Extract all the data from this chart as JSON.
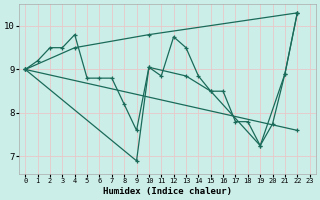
{
  "xlabel": "Humidex (Indice chaleur)",
  "bg_color": "#cceee8",
  "grid_color": "#e8c8c8",
  "line_color": "#1a6b5a",
  "xlim": [
    -0.5,
    23.5
  ],
  "ylim": [
    6.6,
    10.5
  ],
  "xticks": [
    0,
    1,
    2,
    3,
    4,
    5,
    6,
    7,
    8,
    9,
    10,
    11,
    12,
    13,
    14,
    15,
    16,
    17,
    18,
    19,
    20,
    21,
    22,
    23
  ],
  "yticks": [
    7,
    8,
    9,
    10
  ],
  "series": [
    {
      "x": [
        0,
        1,
        2,
        3,
        4,
        5,
        6,
        7,
        8,
        9,
        10,
        11,
        12,
        13,
        14,
        15,
        16,
        17,
        18,
        19,
        20,
        21,
        22
      ],
      "y": [
        9.0,
        9.2,
        9.5,
        9.5,
        9.8,
        8.8,
        8.8,
        8.8,
        8.2,
        7.6,
        9.05,
        8.85,
        9.75,
        9.5,
        8.85,
        8.5,
        8.5,
        7.8,
        7.8,
        7.25,
        7.75,
        8.9,
        10.3
      ]
    },
    {
      "x": [
        0,
        4,
        10,
        22
      ],
      "y": [
        9.0,
        9.5,
        9.8,
        10.3
      ]
    },
    {
      "x": [
        0,
        9,
        10,
        13,
        15,
        19,
        21,
        22
      ],
      "y": [
        9.0,
        6.9,
        9.05,
        8.85,
        8.5,
        7.25,
        8.9,
        10.3
      ]
    },
    {
      "x": [
        0,
        22
      ],
      "y": [
        9.0,
        7.6
      ]
    }
  ]
}
